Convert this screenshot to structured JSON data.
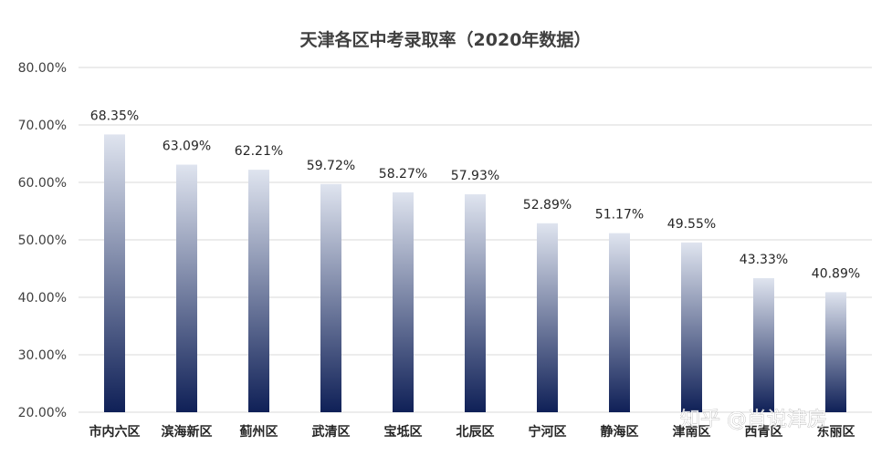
{
  "watermark": "知乎 @肖说津房",
  "colors": {
    "bar_top": "#dfe4ef",
    "bar_bottom": "#0f2057",
    "grid": "#d9d9d9",
    "text": "#404040"
  },
  "chart_data": {
    "type": "bar",
    "title": "天津各区中考录取率（2020年数据）",
    "xlabel": "",
    "ylabel": "",
    "ylim": [
      20,
      80
    ],
    "yticks": [
      20,
      30,
      40,
      50,
      60,
      70,
      80
    ],
    "ytick_labels": [
      "20.00%",
      "30.00%",
      "40.00%",
      "50.00%",
      "60.00%",
      "70.00%",
      "80.00%"
    ],
    "grid": true,
    "legend": "none",
    "categories": [
      "市内六区",
      "滨海新区",
      "蓟州区",
      "武清区",
      "宝坻区",
      "北辰区",
      "宁河区",
      "静海区",
      "津南区",
      "西青区",
      "东丽区"
    ],
    "values": [
      68.35,
      63.09,
      62.21,
      59.72,
      58.27,
      57.93,
      52.89,
      51.17,
      49.55,
      43.33,
      40.89
    ],
    "data_labels": [
      "68.35%",
      "63.09%",
      "62.21%",
      "59.72%",
      "58.27%",
      "57.93%",
      "52.89%",
      "51.17%",
      "49.55%",
      "43.33%",
      "40.89%"
    ]
  }
}
